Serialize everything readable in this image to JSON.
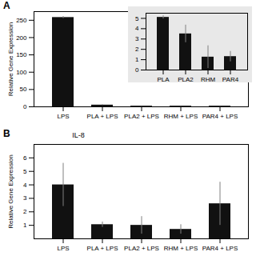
{
  "chart_data": [
    {
      "type": "bar",
      "title": "A",
      "categories": [
        "LPS",
        "PLA + LPS",
        "PLA2 + LPS",
        "RHM + LPS",
        "PAR4 + LPS"
      ],
      "values": [
        258,
        5,
        2,
        2,
        2
      ],
      "errors": [
        3,
        1,
        0.5,
        0.5,
        0.5
      ],
      "ylabel": "Relative Gene Expression",
      "ylim": [
        0,
        275
      ],
      "yticks": [
        0,
        50,
        100,
        150,
        200,
        250
      ],
      "color": "#111111"
    },
    {
      "type": "bar",
      "categories": [
        "PLA",
        "PLA2",
        "RHM",
        "PAR4"
      ],
      "values": [
        5.1,
        3.5,
        1.25,
        1.3
      ],
      "errors": [
        0.15,
        0.85,
        1.1,
        0.5
      ],
      "ylim": [
        0,
        5.5
      ],
      "yticks": [
        0,
        1,
        2,
        3,
        4,
        5
      ],
      "color": "#111111"
    },
    {
      "type": "bar",
      "title": "B",
      "annotations": [
        "IL-8"
      ],
      "categories": [
        "LPS",
        "PLA + LPS",
        "PLA2 + LPS",
        "RHM + LPS",
        "PAR4 + LPS"
      ],
      "values": [
        4.0,
        1.05,
        1.0,
        0.7,
        2.6
      ],
      "errors": [
        1.6,
        0.2,
        0.65,
        0.35,
        1.6
      ],
      "ylabel": "Relative Gene Expression",
      "ylim": [
        0,
        7
      ],
      "yticks": [
        1,
        2,
        3,
        4,
        5,
        6
      ],
      "color": "#111111"
    }
  ]
}
